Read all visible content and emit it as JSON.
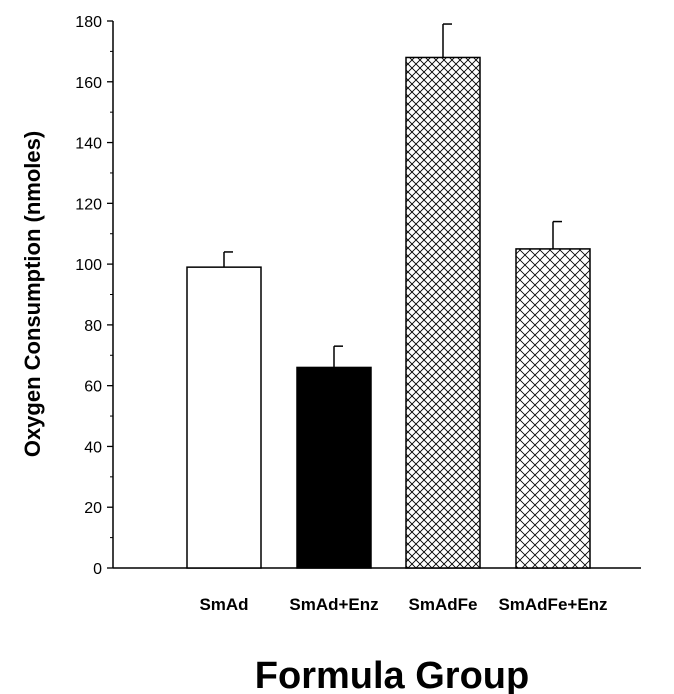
{
  "chart_data": {
    "type": "bar",
    "title": "",
    "xlabel": "Formula Group",
    "ylabel": "Oxygen Consumption (nmoles)",
    "ylim": [
      0,
      180
    ],
    "yticks": [
      0,
      20,
      40,
      60,
      80,
      100,
      120,
      140,
      160,
      180
    ],
    "categories": [
      "SmAd",
      "SmAd+Enz",
      "SmAdFe",
      "SmAdFe+Enz"
    ],
    "values": [
      99,
      66,
      168,
      105
    ],
    "errors": [
      5,
      7,
      11,
      9
    ],
    "fills": [
      "white",
      "#000000",
      "crosshatch-fine",
      "crosshatch-coarse"
    ],
    "grid": false,
    "legend": "none"
  }
}
